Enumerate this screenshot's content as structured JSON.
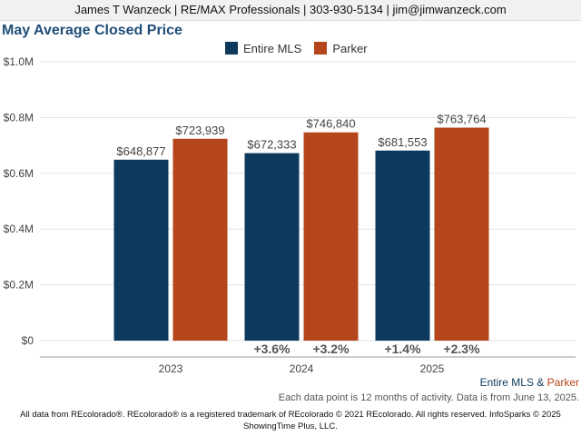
{
  "header": {
    "text": "James T Wanzeck | RE/MAX Professionals | 303-930-5134 | jim@jimwanzeck.com"
  },
  "chart_data": {
    "type": "bar",
    "title": "May Average Closed Price",
    "categories": [
      "2023",
      "2024",
      "2025"
    ],
    "series": [
      {
        "name": "Entire MLS",
        "color": "#0d3a5c",
        "values": [
          648877,
          672333,
          681553
        ],
        "labels": [
          "$648,877",
          "$672,333",
          "$681,553"
        ],
        "changes": [
          "",
          "+3.6%",
          "+1.4%"
        ]
      },
      {
        "name": "Parker",
        "color": "#b5451b",
        "values": [
          723939,
          746840,
          763764
        ],
        "labels": [
          "$723,939",
          "$746,840",
          "$763,764"
        ],
        "changes": [
          "",
          "+3.2%",
          "+2.3%"
        ]
      }
    ],
    "y_ticks": [
      "$0",
      "$0.2M",
      "$0.4M",
      "$0.6M",
      "$0.8M",
      "$1.0M"
    ],
    "ylim": [
      0,
      1000000
    ],
    "grid": true,
    "legend_position": "top-center"
  },
  "footer": {
    "series_a": "Entire MLS",
    "amp": " & ",
    "series_b": "Parker",
    "note": "Each data point is 12 months of activity. Data is from June 13, 2025.",
    "credit_line1": "All data from REcolorado®. REcolorado® is a registered trademark of REcolorado © 2021 REcolorado. All rights reserved. InfoSparks © 2025",
    "credit_line2": "ShowingTime Plus, LLC."
  }
}
